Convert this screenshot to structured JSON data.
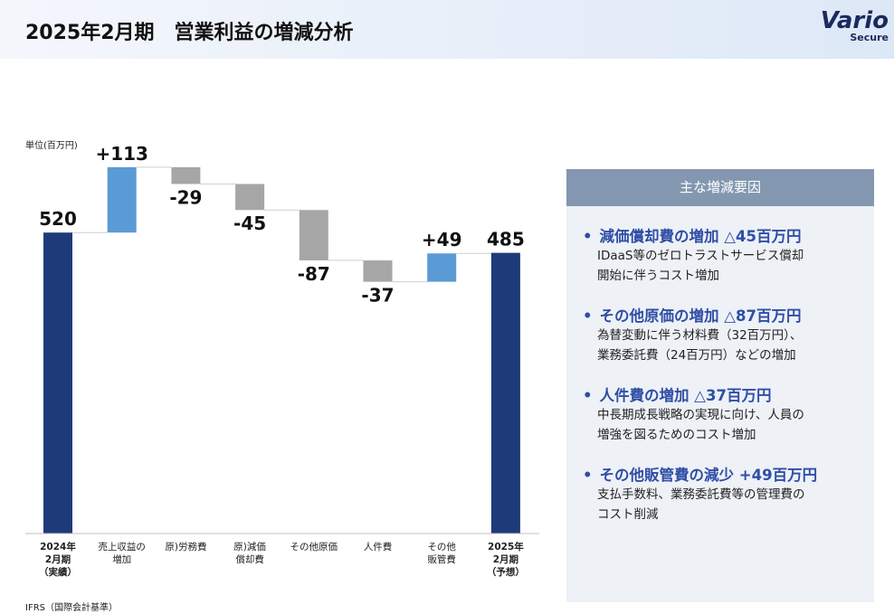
{
  "title": "2025年2月期　営業利益の増減分析",
  "logo": {
    "name": "Vario",
    "sub": "Secure"
  },
  "unit": "単位(百万円)",
  "footnote": "IFRS（国際会計基準）",
  "chart_data": {
    "type": "waterfall",
    "categories": [
      [
        "2024年",
        "2月期",
        "（実績）"
      ],
      [
        "売上収益の",
        "増加"
      ],
      [
        "原)労務費"
      ],
      [
        "原)減価",
        "償却費"
      ],
      [
        "その他原価"
      ],
      [
        "人件費"
      ],
      [
        "その他",
        "販管費"
      ],
      [
        "2025年",
        "2月期",
        "（予想）"
      ]
    ],
    "values": [
      520,
      113,
      -29,
      -45,
      -87,
      -37,
      49,
      485
    ],
    "value_labels": [
      "520",
      "+113",
      "-29",
      "-45",
      "-87",
      "-37",
      "+49",
      "485"
    ],
    "totals": [
      0,
      7
    ],
    "colors": {
      "total": "#1f3a78",
      "increase": "#5b9bd5",
      "decrease": "#a6a6a6"
    }
  },
  "panel": {
    "title": "主な増減要因",
    "items": [
      {
        "heading": "減価償却費の増加 △45百万円",
        "lines": [
          "IDaaS等のゼロトラストサービス償却",
          "開始に伴うコスト増加"
        ]
      },
      {
        "heading": "その他原価の増加 △87百万円",
        "lines": [
          "為替変動に伴う材料費（32百万円）、",
          "業務委託費（24百万円）などの増加"
        ]
      },
      {
        "heading": "人件費の増加 △37百万円",
        "lines": [
          "中長期成長戦略の実現に向け、人員の",
          "増強を図るためのコスト増加"
        ]
      },
      {
        "heading": "その他販管費の減少 +49百万円",
        "lines": [
          "支払手数料、業務委託費等の管理費の",
          "コスト削減"
        ]
      }
    ]
  }
}
